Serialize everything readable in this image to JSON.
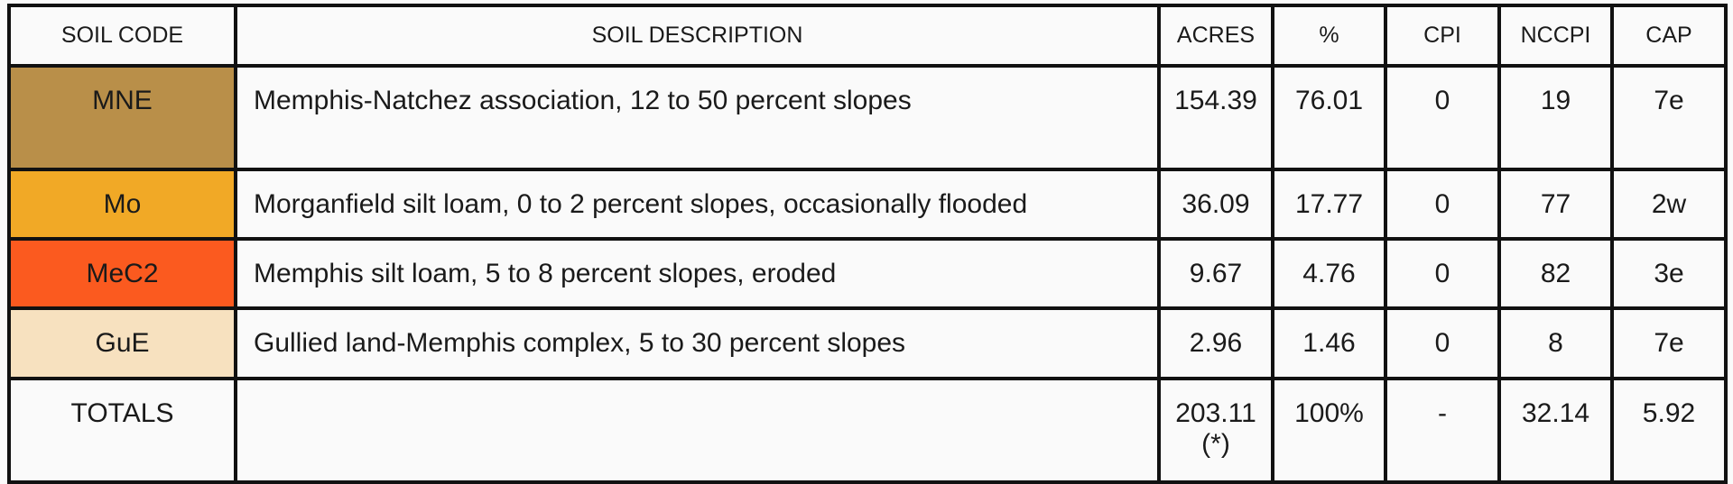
{
  "headers": {
    "soil_code": "SOIL CODE",
    "soil_description": "SOIL DESCRIPTION",
    "acres": "ACRES",
    "percent": "%",
    "cpi": "CPI",
    "nccpi": "NCCPI",
    "cap": "CAP"
  },
  "rows": [
    {
      "code": "MNE",
      "color": "#b98f49",
      "description": "Memphis-Natchez association, 12 to 50 percent slopes",
      "acres": "154.39",
      "percent": "76.01",
      "cpi": "0",
      "nccpi": "19",
      "cap": "7e"
    },
    {
      "code": "Mo",
      "color": "#f1a926",
      "description": "Morganfield silt loam, 0 to 2 percent slopes, occasionally flooded",
      "acres": "36.09",
      "percent": "17.77",
      "cpi": "0",
      "nccpi": "77",
      "cap": "2w"
    },
    {
      "code": "MeC2",
      "color": "#fb5a1f",
      "description": "Memphis silt loam, 5 to 8 percent slopes, eroded",
      "acres": "9.67",
      "percent": "4.76",
      "cpi": "0",
      "nccpi": "82",
      "cap": "3e"
    },
    {
      "code": "GuE",
      "color": "#f7e1bf",
      "description": "Gullied land-Memphis complex, 5 to 30 percent slopes",
      "acres": "2.96",
      "percent": "1.46",
      "cpi": "0",
      "nccpi": "8",
      "cap": "7e"
    }
  ],
  "totals": {
    "label": "TOTALS",
    "description": "",
    "acres": "203.11(*)",
    "percent": "100%",
    "cpi": "-",
    "nccpi": "32.14",
    "cap": "5.92"
  }
}
